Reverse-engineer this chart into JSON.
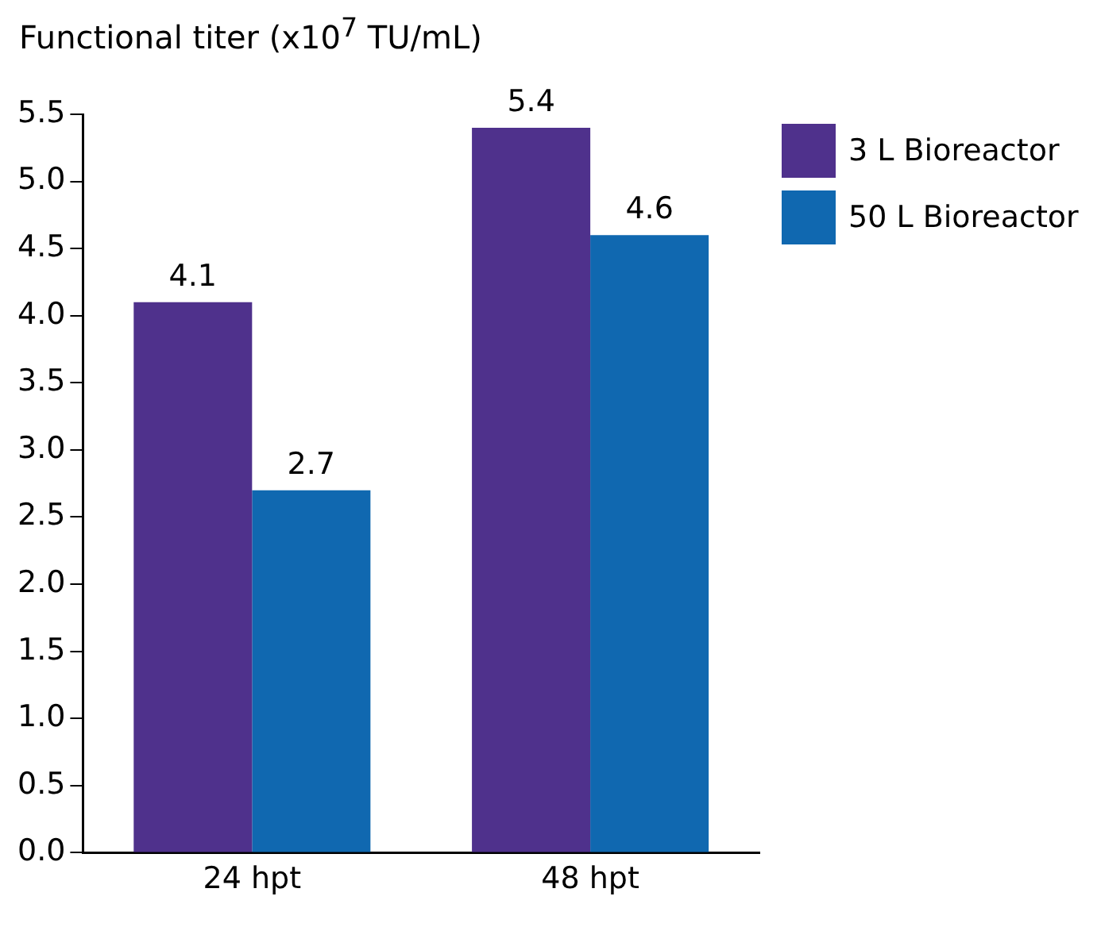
{
  "chart_data": {
    "type": "bar",
    "ylabel": "Functional titer (x10$^{7}$ TU/mL)",
    "categories": [
      "24 hpt",
      "48 hpt"
    ],
    "series": [
      {
        "name": "3 L Bioreactor",
        "color": "#4f318c",
        "values": [
          4.1,
          5.4
        ]
      },
      {
        "name": "50 L Bioreactor",
        "color": "#1068b0",
        "values": [
          2.7,
          4.6
        ]
      }
    ],
    "ylim": [
      0,
      5.5
    ],
    "yticks": [
      {
        "value": 0,
        "label": "0.0"
      },
      {
        "value": 0.5,
        "label": "0.5"
      },
      {
        "value": 1,
        "label": "1.0"
      },
      {
        "value": 1.5,
        "label": "1.5"
      },
      {
        "value": 2,
        "label": "2.0"
      },
      {
        "value": 2.5,
        "label": "2.5"
      },
      {
        "value": 3,
        "label": "3.0"
      },
      {
        "value": 3.5,
        "label": "3.5"
      },
      {
        "value": 4,
        "label": "4.0"
      },
      {
        "value": 4.5,
        "label": "4.5"
      },
      {
        "value": 5,
        "label": "5.0"
      },
      {
        "value": 5.5,
        "label": "5.5"
      }
    ],
    "data_labels": true,
    "grid": false,
    "legend": "top right"
  }
}
